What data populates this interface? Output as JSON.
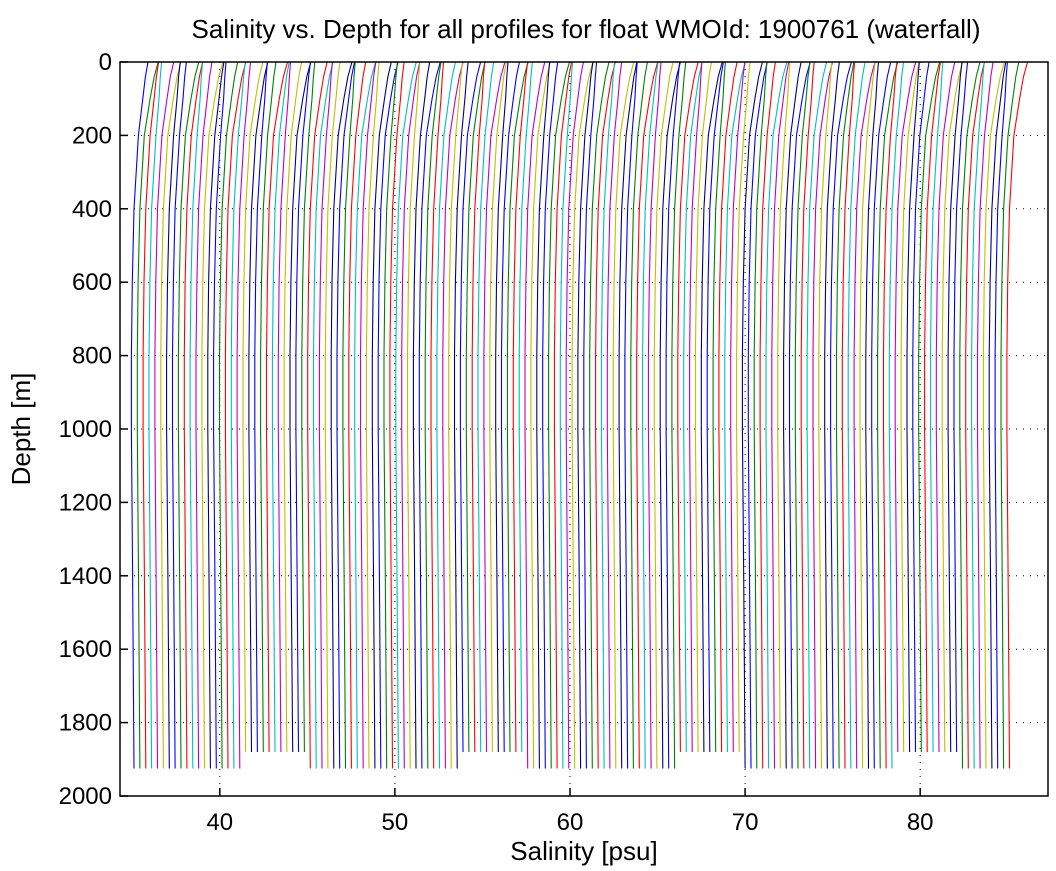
{
  "chart_data": {
    "type": "line",
    "title": "Salinity vs. Depth for all profiles for float WMOId: 1900761 (waterfall)",
    "xlabel": "Salinity [psu]",
    "ylabel": "Depth [m]",
    "xlim": [
      34.3,
      87.3
    ],
    "ylim": [
      0,
      2000
    ],
    "y_reversed": true,
    "x_ticks": [
      40,
      50,
      60,
      70,
      80
    ],
    "y_ticks": [
      0,
      200,
      400,
      600,
      800,
      1000,
      1200,
      1400,
      1600,
      1800,
      2000
    ],
    "grid": "dotted",
    "legend": "none",
    "series_colors": [
      "#0000ff",
      "#008000",
      "#ff0000",
      "#00bfbf",
      "#bf00bf",
      "#bfbf00",
      "#000080"
    ],
    "series": {
      "count": 150,
      "description": "Waterfall of salinity profiles; each profile offset by ~0.33 psu",
      "first_profile": {
        "top_salinity": 35.9,
        "bottom_salinity": 35.1,
        "max_depth": 1925
      },
      "last_profile": {
        "top_salinity": 85.9,
        "bottom_salinity": 84.9,
        "max_depth": 1925
      },
      "profile_shape_depths": [
        0,
        40,
        100,
        200,
        400,
        600,
        800,
        1000,
        1400,
        1925
      ],
      "profile_shape_offsets": [
        0.0,
        -0.15,
        -0.3,
        -0.55,
        -0.8,
        -0.9,
        -0.95,
        -0.95,
        -0.88,
        -0.8
      ]
    }
  }
}
